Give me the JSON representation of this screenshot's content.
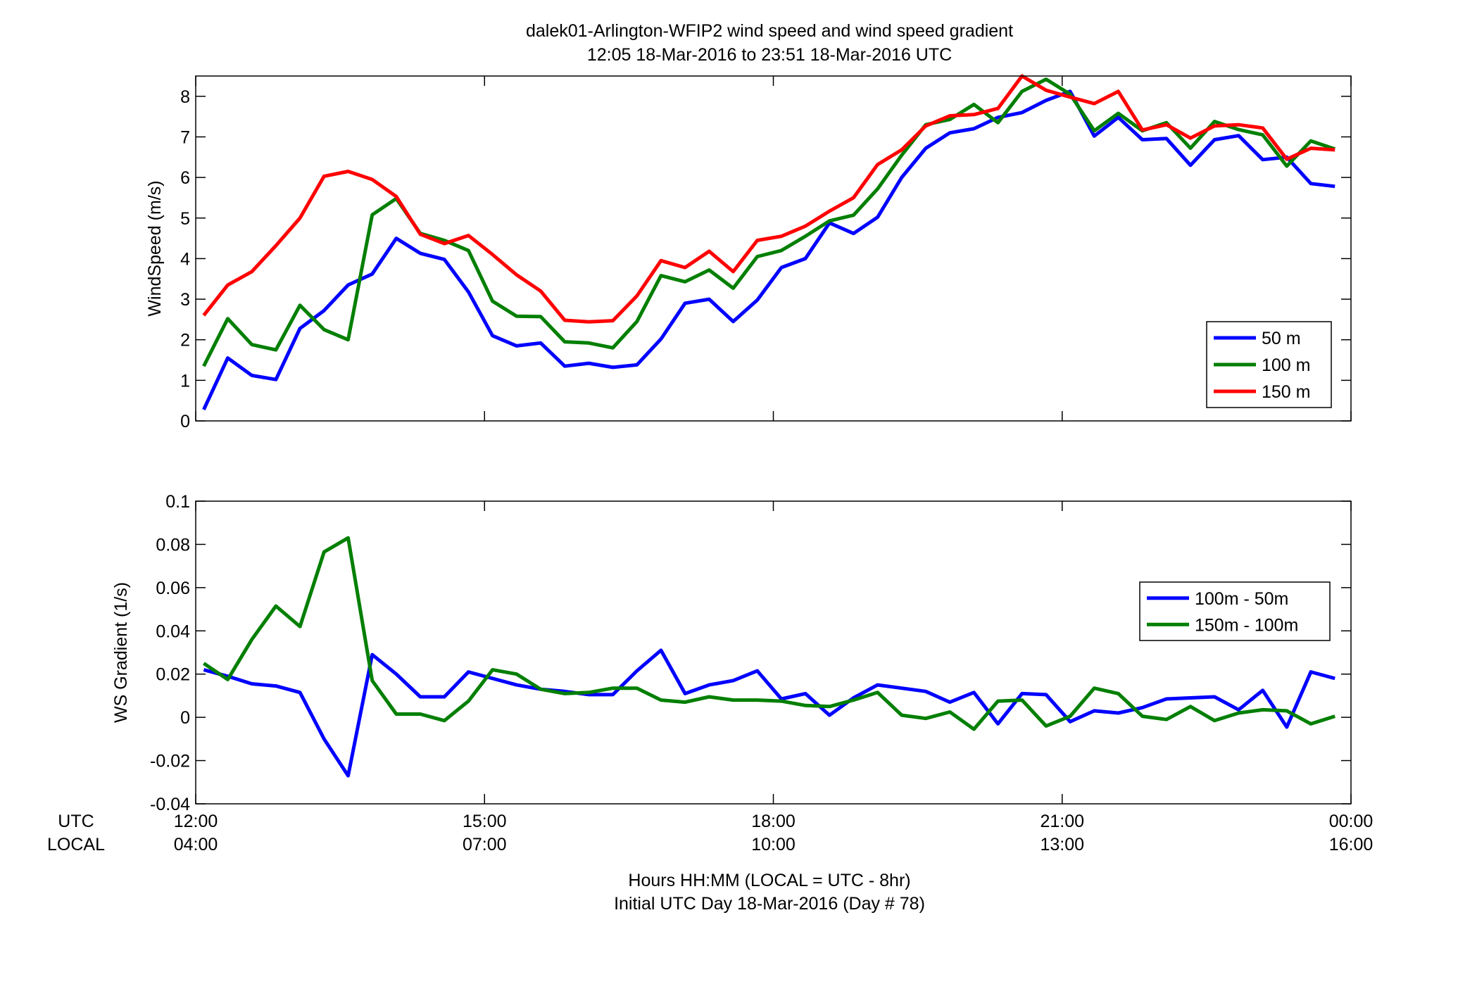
{
  "title": {
    "line1": "dalek01-Arlington-WFIP2  wind speed and wind speed gradient",
    "line2": "12:05 18-Mar-2016 to 23:51 18-Mar-2016  UTC"
  },
  "xaxis": {
    "row_label_utc": "UTC",
    "row_label_local": "LOCAL",
    "ticks_hours": [
      12,
      15,
      18,
      21,
      24
    ],
    "ticks_utc": [
      "12:00",
      "15:00",
      "18:00",
      "21:00",
      "00:00"
    ],
    "ticks_local": [
      "04:00",
      "07:00",
      "10:00",
      "13:00",
      "16:00"
    ],
    "range_hours": [
      12,
      24
    ],
    "label_line1": "Hours HH:MM  (LOCAL = UTC - 8hr)",
    "label_line2": "Initial UTC Day 18-Mar-2016 (Day # 78)"
  },
  "colors": {
    "blue": "#0000ff",
    "green": "#007f00",
    "red": "#ff0000"
  },
  "chart_data": [
    {
      "type": "line",
      "ylabel": "WindSpeed (m/s)",
      "ylim": [
        0,
        8.5
      ],
      "yticks": [
        0,
        1,
        2,
        3,
        4,
        5,
        6,
        7,
        8
      ],
      "legend_position": "lower-right",
      "x_hours": [
        12.083,
        12.333,
        12.583,
        12.833,
        13.083,
        13.333,
        13.583,
        13.833,
        14.083,
        14.333,
        14.583,
        14.833,
        15.083,
        15.333,
        15.583,
        15.833,
        16.083,
        16.333,
        16.583,
        16.833,
        17.083,
        17.333,
        17.583,
        17.833,
        18.083,
        18.333,
        18.583,
        18.833,
        19.083,
        19.333,
        19.583,
        19.833,
        20.083,
        20.333,
        20.583,
        20.833,
        21.083,
        21.333,
        21.583,
        21.833,
        22.083,
        22.333,
        22.583,
        22.833,
        23.083,
        23.333,
        23.583,
        23.833
      ],
      "series": [
        {
          "name": "50 m",
          "color": "#0000ff",
          "values": [
            0.28,
            1.55,
            1.12,
            1.02,
            2.28,
            2.72,
            3.35,
            3.62,
            4.5,
            4.13,
            3.98,
            3.18,
            2.1,
            1.85,
            1.92,
            1.35,
            1.42,
            1.32,
            1.38,
            2.02,
            2.9,
            3.0,
            2.45,
            2.98,
            3.78,
            4.0,
            4.88,
            4.62,
            5.02,
            6.0,
            6.72,
            7.1,
            7.2,
            7.48,
            7.6,
            7.9,
            8.12,
            7.02,
            7.48,
            6.93,
            6.96,
            6.3,
            6.93,
            7.03,
            6.44,
            6.5,
            5.85,
            5.78
          ]
        },
        {
          "name": "100 m",
          "color": "#007f00",
          "values": [
            1.35,
            2.52,
            1.88,
            1.75,
            2.85,
            2.25,
            2.0,
            5.08,
            5.48,
            4.62,
            4.45,
            4.2,
            2.95,
            2.58,
            2.57,
            1.95,
            1.92,
            1.8,
            2.45,
            3.58,
            3.43,
            3.72,
            3.27,
            4.05,
            4.2,
            4.55,
            4.93,
            5.07,
            5.72,
            6.55,
            7.3,
            7.43,
            7.8,
            7.35,
            8.12,
            8.42,
            8.05,
            7.15,
            7.58,
            7.15,
            7.35,
            6.72,
            7.38,
            7.18,
            7.05,
            6.28,
            6.9,
            6.7
          ]
        },
        {
          "name": "150 m",
          "color": "#ff0000",
          "values": [
            2.6,
            3.35,
            3.68,
            4.32,
            5.0,
            6.03,
            6.15,
            5.95,
            5.53,
            4.6,
            4.37,
            4.57,
            4.1,
            3.6,
            3.2,
            2.48,
            2.44,
            2.47,
            3.08,
            3.95,
            3.78,
            4.18,
            3.68,
            4.45,
            4.55,
            4.8,
            5.17,
            5.5,
            6.32,
            6.68,
            7.27,
            7.52,
            7.55,
            7.7,
            8.5,
            8.15,
            7.98,
            7.82,
            8.12,
            7.17,
            7.3,
            6.97,
            7.27,
            7.3,
            7.22,
            6.45,
            6.72,
            6.68
          ]
        }
      ]
    },
    {
      "type": "line",
      "ylabel": "WS Gradient (1/s)",
      "ylim": [
        -0.04,
        0.1
      ],
      "yticks": [
        -0.04,
        -0.02,
        0,
        0.02,
        0.04,
        0.06,
        0.08,
        0.1
      ],
      "ytick_labels": [
        "-0.04",
        "-0.02",
        "0",
        "0.02",
        "0.04",
        "0.06",
        "0.08",
        "0.1"
      ],
      "legend_position": "upper-right",
      "x_hours": [
        12.083,
        12.333,
        12.583,
        12.833,
        13.083,
        13.333,
        13.583,
        13.833,
        14.083,
        14.333,
        14.583,
        14.833,
        15.083,
        15.333,
        15.583,
        15.833,
        16.083,
        16.333,
        16.583,
        16.833,
        17.083,
        17.333,
        17.583,
        17.833,
        18.083,
        18.333,
        18.583,
        18.833,
        19.083,
        19.333,
        19.583,
        19.833,
        20.083,
        20.333,
        20.583,
        20.833,
        21.083,
        21.333,
        21.583,
        21.833,
        22.083,
        22.333,
        22.583,
        22.833,
        23.083,
        23.333,
        23.583,
        23.833
      ],
      "series": [
        {
          "name": "100m - 50m",
          "color": "#0000ff",
          "values": [
            0.022,
            0.019,
            0.0155,
            0.0145,
            0.0115,
            -0.01,
            -0.027,
            0.029,
            0.02,
            0.0095,
            0.0095,
            0.021,
            0.018,
            0.015,
            0.013,
            0.012,
            0.0105,
            0.0105,
            0.0215,
            0.031,
            0.011,
            0.015,
            0.017,
            0.0215,
            0.0085,
            0.011,
            0.001,
            0.009,
            0.015,
            0.0135,
            0.012,
            0.007,
            0.0115,
            -0.003,
            0.011,
            0.0105,
            -0.002,
            0.003,
            0.002,
            0.0045,
            0.0085,
            0.009,
            0.0095,
            0.0035,
            0.0125,
            -0.0045,
            0.021,
            0.018
          ]
        },
        {
          "name": "150m - 100m",
          "color": "#007f00",
          "values": [
            0.025,
            0.0175,
            0.036,
            0.0515,
            0.042,
            0.0765,
            0.083,
            0.017,
            0.0015,
            0.0015,
            -0.0015,
            0.0075,
            0.022,
            0.02,
            0.013,
            0.011,
            0.0115,
            0.0135,
            0.0135,
            0.008,
            0.007,
            0.0095,
            0.008,
            0.008,
            0.0075,
            0.0055,
            0.005,
            0.008,
            0.0115,
            0.001,
            -0.0005,
            0.0025,
            -0.0055,
            0.0075,
            0.008,
            -0.004,
            0.0005,
            0.0135,
            0.011,
            0.0005,
            -0.001,
            0.005,
            -0.0015,
            0.002,
            0.0035,
            0.003,
            -0.003,
            0.0005
          ]
        }
      ]
    }
  ]
}
